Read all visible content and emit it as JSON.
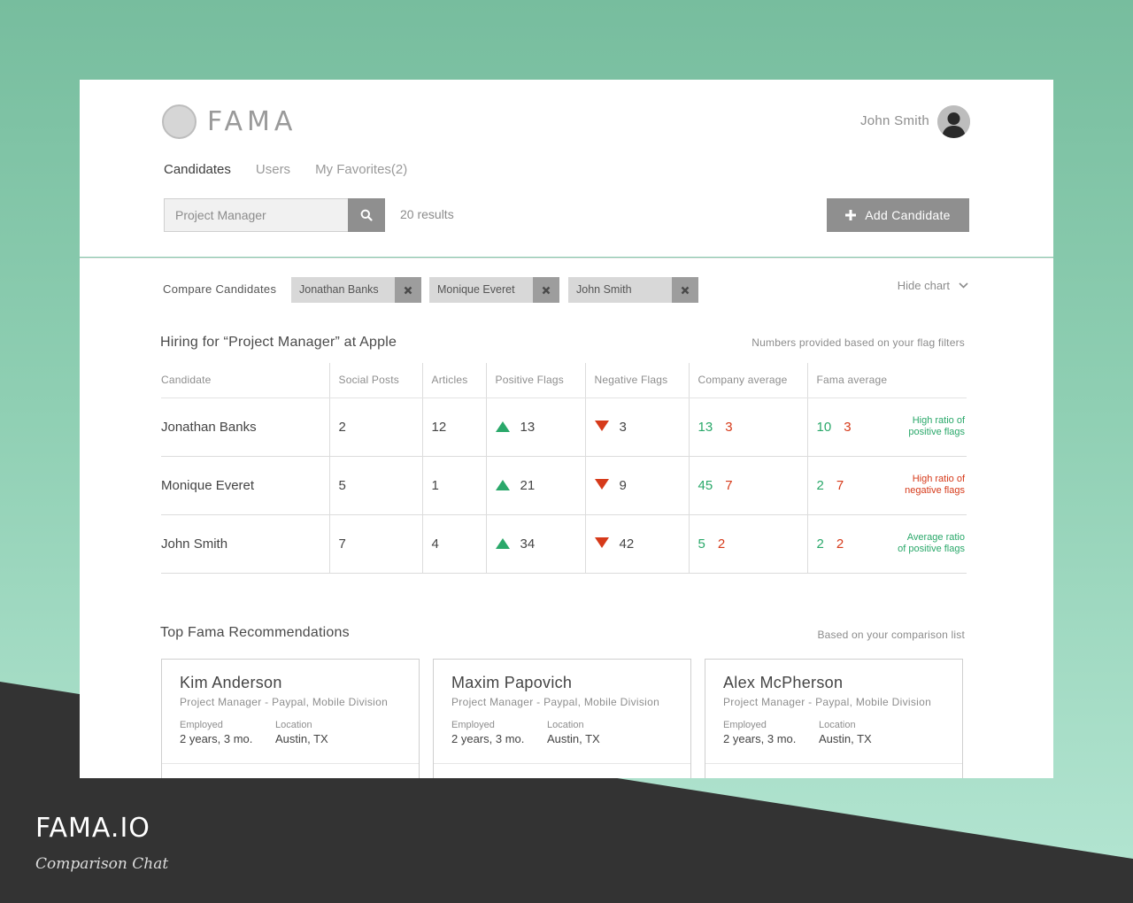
{
  "colors": {
    "positive": "#2aa86a",
    "negative": "#d63a1a",
    "button_gray": "#8f8f8f",
    "background_green": "#77bd9e",
    "footer_dark": "#333333"
  },
  "footer": {
    "title": "FAMA.IO",
    "subtitle": "Comparison Chat"
  },
  "header": {
    "logo_text": "FAMA",
    "user_name": "John Smith",
    "tabs": [
      {
        "label": "Candidates",
        "active": true
      },
      {
        "label": "Users",
        "active": false
      },
      {
        "label": "My Favorites(2)",
        "active": false
      }
    ],
    "search": {
      "placeholder": "Project Manager",
      "value": "",
      "icon": "search-icon"
    },
    "results": "20 results",
    "add_button": "Add Candidate"
  },
  "compare": {
    "label": "Compare Candidates",
    "chips": [
      "Jonathan Banks",
      "Monique Everet",
      "John Smith"
    ],
    "hide_chart": "Hide chart"
  },
  "table": {
    "title": "Hiring for “Project Manager” at Apple",
    "note": "Numbers provided based on your flag filters",
    "headers": [
      "Candidate",
      "Social Posts",
      "Articles",
      "Positive Flags",
      "Negative Flags",
      "Company average",
      "Fama average"
    ],
    "rows": [
      {
        "name": "Jonathan Banks",
        "social": "2",
        "articles": "12",
        "positive": "13",
        "negative": "3",
        "company_pos": "13",
        "company_neg": "3",
        "fama_pos": "10",
        "fama_neg": "3",
        "note_line1": "High ratio of",
        "note_line2": "positive flags",
        "note_tone": "positive"
      },
      {
        "name": "Monique Everet",
        "social": "5",
        "articles": "1",
        "positive": "21",
        "negative": "9",
        "company_pos": "45",
        "company_neg": "7",
        "fama_pos": "2",
        "fama_neg": "7",
        "note_line1": "High ratio of",
        "note_line2": "negative flags",
        "note_tone": "negative"
      },
      {
        "name": "John Smith",
        "social": "7",
        "articles": "4",
        "positive": "34",
        "negative": "42",
        "company_pos": "5",
        "company_neg": "2",
        "fama_pos": "2",
        "fama_neg": "2",
        "note_line1": "Average ratio",
        "note_line2": "of positive flags",
        "note_tone": "positive"
      }
    ]
  },
  "recommendations": {
    "title": "Top Fama Recommendations",
    "note": "Based on your comparison list",
    "cards": [
      {
        "name": "Kim Anderson",
        "role": "Project Manager - Paypal, Mobile Division",
        "employed_label": "Employed",
        "employed": "2 years, 3 mo.",
        "location_label": "Location",
        "location": "Austin, TX"
      },
      {
        "name": "Maxim Papovich",
        "role": "Project Manager - Paypal, Mobile Division",
        "employed_label": "Employed",
        "employed": "2 years, 3 mo.",
        "location_label": "Location",
        "location": "Austin, TX"
      },
      {
        "name": "Alex McPherson",
        "role": "Project Manager - Paypal, Mobile Division",
        "employed_label": "Employed",
        "employed": "2 years, 3 mo.",
        "location_label": "Location",
        "location": "Austin, TX"
      }
    ]
  }
}
